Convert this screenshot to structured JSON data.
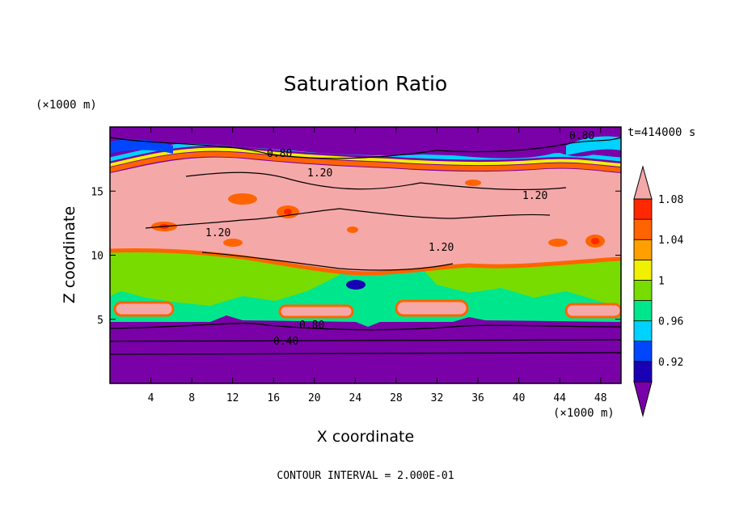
{
  "chart_data": {
    "type": "heatmap",
    "title": "Saturation Ratio",
    "xlabel": "X coordinate",
    "ylabel": "Z coordinate",
    "x_unit": "(×1000 m)",
    "y_unit": "(×1000 m)",
    "time_label": "t=414000 s",
    "footer": "CONTOUR INTERVAL = 2.000E-01",
    "xlim": [
      0,
      50
    ],
    "ylim": [
      0,
      20
    ],
    "x_ticks": [
      4,
      8,
      12,
      16,
      20,
      24,
      28,
      32,
      36,
      40,
      44,
      48
    ],
    "y_ticks": [
      5,
      10,
      15
    ],
    "colorbar": {
      "labels": [
        "0.92",
        "0.96",
        "1",
        "1.04",
        "1.08"
      ],
      "colors": [
        "#7a00a8",
        "#1a00b4",
        "#0046ff",
        "#00d2ff",
        "#00e68c",
        "#78dc00",
        "#f0f000",
        "#ffa000",
        "#ff6400",
        "#ff2800",
        "#f5a8a8"
      ]
    },
    "contour_labels": [
      "0.80",
      "0.80",
      "1.20",
      "1.20",
      "1.20",
      "1.20",
      "0.80",
      "0.40"
    ]
  }
}
